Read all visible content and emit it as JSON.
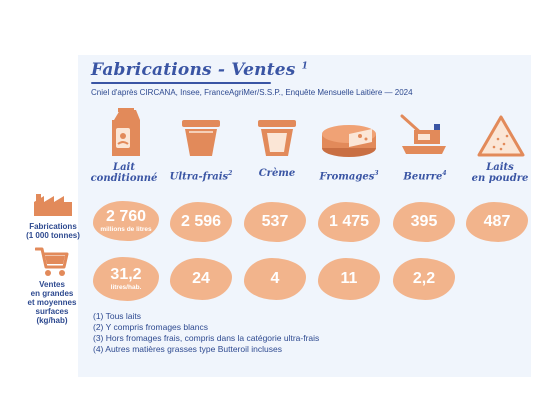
{
  "header": {
    "title": "Fabrications - Ventes",
    "title_note": "1",
    "source": "Cniel d'après CIRCANA, Insee, FranceAgriMer/S.S.P., Enquête Mensuelle Laitière — 2024"
  },
  "products": [
    {
      "label": "Lait conditionné",
      "note": "",
      "icon": "milk-carton-icon"
    },
    {
      "label": "Ultra-frais",
      "note": "2",
      "icon": "yogurt-pot-icon"
    },
    {
      "label": "Crème",
      "note": "",
      "icon": "cream-pot-icon"
    },
    {
      "label": "Fromages",
      "note": "3",
      "icon": "cheese-wheel-icon"
    },
    {
      "label": "Beurre",
      "note": "4",
      "icon": "butter-dish-icon"
    },
    {
      "label": "Laits en poudre",
      "note": "",
      "icon": "milk-powder-icon"
    }
  ],
  "rows": {
    "fabrications": {
      "label_line1": "Fabrications",
      "label_line2": "(1 000 tonnes)",
      "icon": "factory-icon",
      "values": [
        "2 760",
        "2 596",
        "537",
        "1 475",
        "395",
        "487"
      ],
      "first_unit": "millions de litres"
    },
    "ventes": {
      "label_line1": "Ventes",
      "label_line2": "en grandes",
      "label_line3": "et moyennes",
      "label_line4": "surfaces",
      "label_line5": "(kg/hab)",
      "icon": "shopping-cart-icon",
      "values": [
        "31,2",
        "24",
        "4",
        "11",
        "2,2"
      ],
      "first_unit": "litres/hab."
    }
  },
  "notes": [
    "(1) Tous laits",
    "(2) Y compris fromages blancs",
    "(3) Hors fromages frais, compris dans la catégorie ultra-frais",
    "(4) Autres matières grasses type Butteroil incluses"
  ],
  "colors": {
    "accent_blue": "#3a55a4",
    "blob_orange": "#f2b48c",
    "icon_orange": "#e28a5a",
    "panel_bg": "#f0f5fc"
  }
}
